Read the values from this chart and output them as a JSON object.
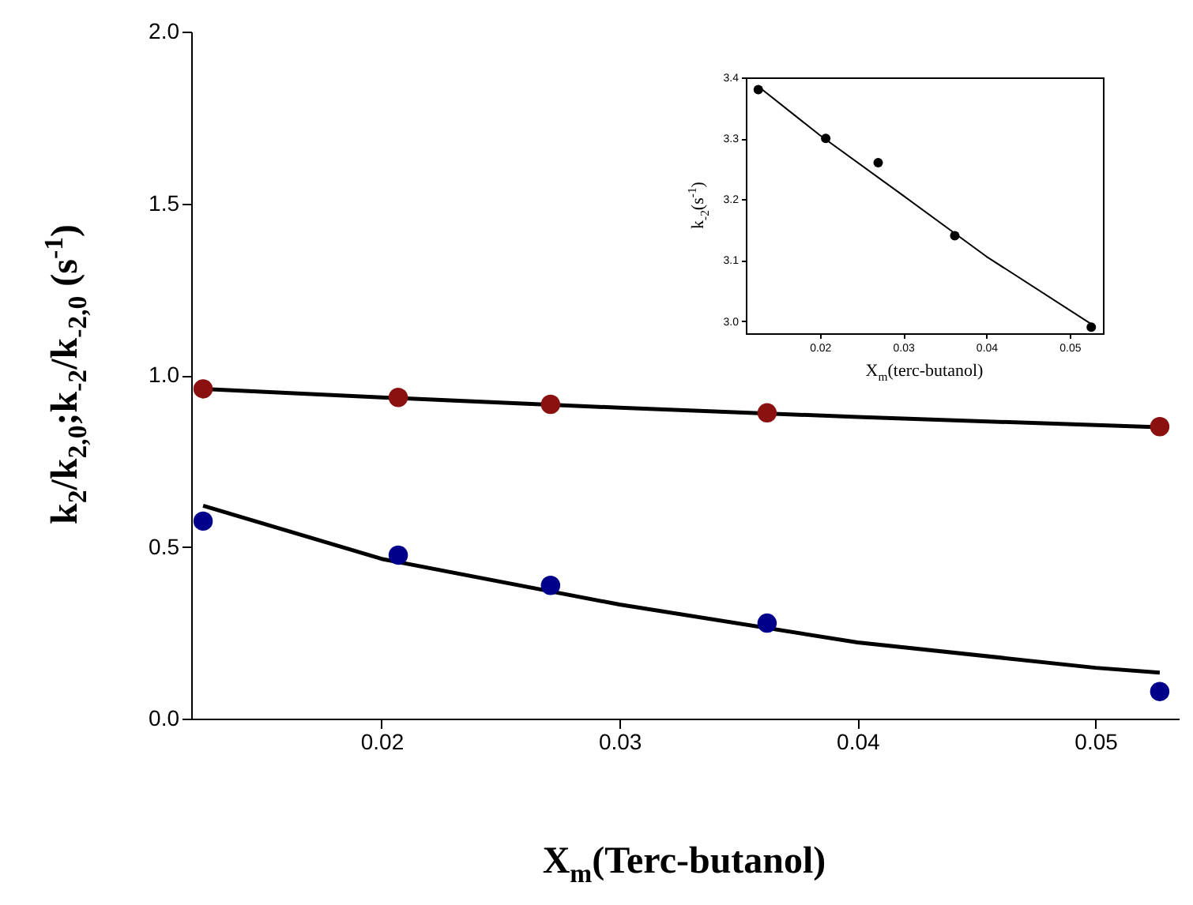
{
  "chart_data": [
    {
      "type": "scatter",
      "xlabel": "X$_{m}$(Terc-butanol)",
      "ylabel": "k$_{2}$/k$_{2,0}$;k$_{-2}$/k$_{-2,0}$ (s$^{-1}$)",
      "xlim": [
        0.012,
        0.0535
      ],
      "ylim": [
        0,
        2
      ],
      "xticks": [
        0.02,
        0.03,
        0.04,
        0.05
      ],
      "yticks": [
        {
          "value": 0,
          "label": "0.0"
        },
        0.5,
        {
          "value": 1,
          "label": "1.0"
        },
        1.5,
        {
          "value": 2,
          "label": "2.0"
        }
      ],
      "grid": false,
      "series": [
        {
          "type": "line",
          "color": "#000000",
          "marker": "none",
          "line_style": "solid",
          "x": [
            0.0125,
            0.02,
            0.03,
            0.04,
            0.0527
          ],
          "values": [
            0.96,
            0.935,
            0.905,
            0.878,
            0.848
          ]
        },
        {
          "type": "line",
          "color": "#000000",
          "marker": "none",
          "line_style": "solid",
          "x": [
            0.0125,
            0.02,
            0.03,
            0.04,
            0.05,
            0.0527
          ],
          "values": [
            0.62,
            0.465,
            0.332,
            0.222,
            0.148,
            0.134
          ]
        },
        {
          "color": "#8b1010",
          "marker": "circle",
          "x": [
            0.0125,
            0.0207,
            0.0271,
            0.0362,
            0.0527
          ],
          "values": [
            0.96,
            0.935,
            0.915,
            0.89,
            0.85
          ]
        },
        {
          "color": "#00008b",
          "marker": "circle",
          "x": [
            0.0125,
            0.0207,
            0.0271,
            0.0362,
            0.0527
          ],
          "values": [
            0.575,
            0.476,
            0.388,
            0.278,
            0.079
          ]
        }
      ]
    },
    {
      "type": "scatter",
      "xlabel": "X$_{m}$(terc-butanol)",
      "ylabel": "k$_{-2}$(s$^{-1}$)",
      "xlim": [
        0.0111,
        0.054
      ],
      "ylim": [
        2.98,
        3.4
      ],
      "xticks": [
        0.02,
        0.03,
        0.04,
        0.05
      ],
      "yticks": [
        {
          "value": 3,
          "label": "3.0"
        },
        3.1,
        3.2,
        3.3,
        3.4
      ],
      "grid": false,
      "series": [
        {
          "type": "line",
          "color": "#000000",
          "marker": "none",
          "line_style": "solid",
          "x": [
            0.0126,
            0.02,
            0.03,
            0.04,
            0.0526
          ],
          "values": [
            3.385,
            3.305,
            3.206,
            3.106,
            2.995
          ]
        },
        {
          "color": "#000000",
          "marker": "circle",
          "x": [
            0.0126,
            0.0207,
            0.027,
            0.0362,
            0.0526
          ],
          "values": [
            3.38,
            3.3,
            3.26,
            3.14,
            2.99
          ]
        }
      ]
    }
  ]
}
